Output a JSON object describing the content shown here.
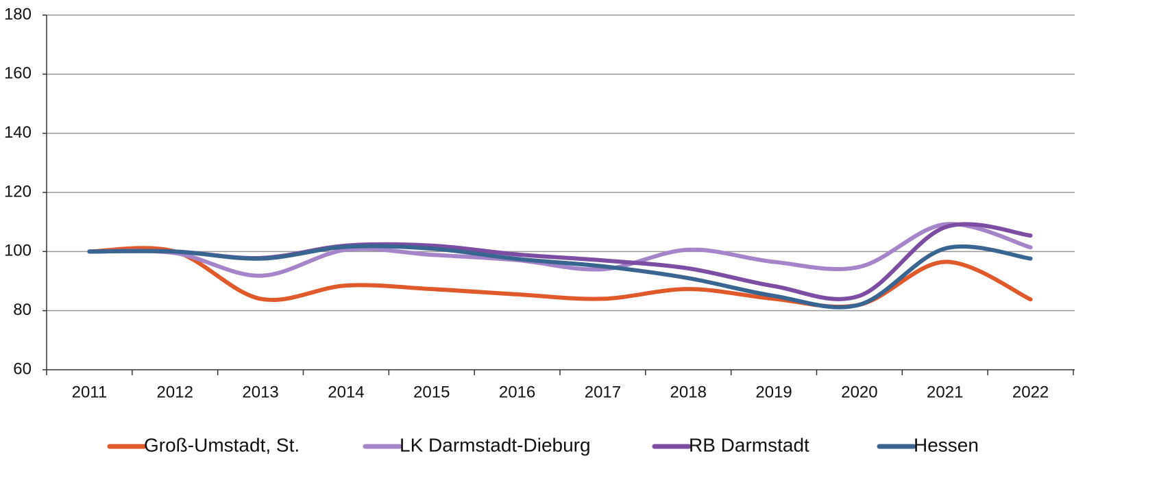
{
  "chart_data": {
    "type": "line",
    "categories": [
      "2011",
      "2012",
      "2013",
      "2014",
      "2015",
      "2016",
      "2017",
      "2018",
      "2019",
      "2020",
      "2021",
      "2022"
    ],
    "series": [
      {
        "name": "Groß-Umstadt, St.",
        "color": "#e0592a",
        "values": [
          100,
          100,
          84,
          88.5,
          87.3,
          85.5,
          84,
          87.3,
          84,
          82,
          96.5,
          83.8
        ]
      },
      {
        "name": "LK Darmstadt-Dieburg",
        "color": "#a585c9",
        "values": [
          100,
          99.5,
          91.8,
          100.6,
          98.9,
          97.1,
          94,
          100.6,
          96.5,
          94.8,
          109.2,
          101.4
        ]
      },
      {
        "name": "RB Darmstadt",
        "color": "#7b4ea3",
        "values": [
          100,
          100,
          97.8,
          102,
          102,
          99,
          97,
          94.3,
          88.3,
          85,
          108.2,
          105.4
        ]
      },
      {
        "name": "Hessen",
        "color": "#3a6591",
        "values": [
          100,
          100,
          97.6,
          101.6,
          101,
          97.5,
          95,
          91,
          85,
          82,
          101,
          97.6
        ]
      }
    ],
    "ylim": [
      60,
      180
    ],
    "yticks": [
      60,
      80,
      100,
      120,
      140,
      160,
      180
    ],
    "grid": true,
    "legend": "bottom"
  }
}
